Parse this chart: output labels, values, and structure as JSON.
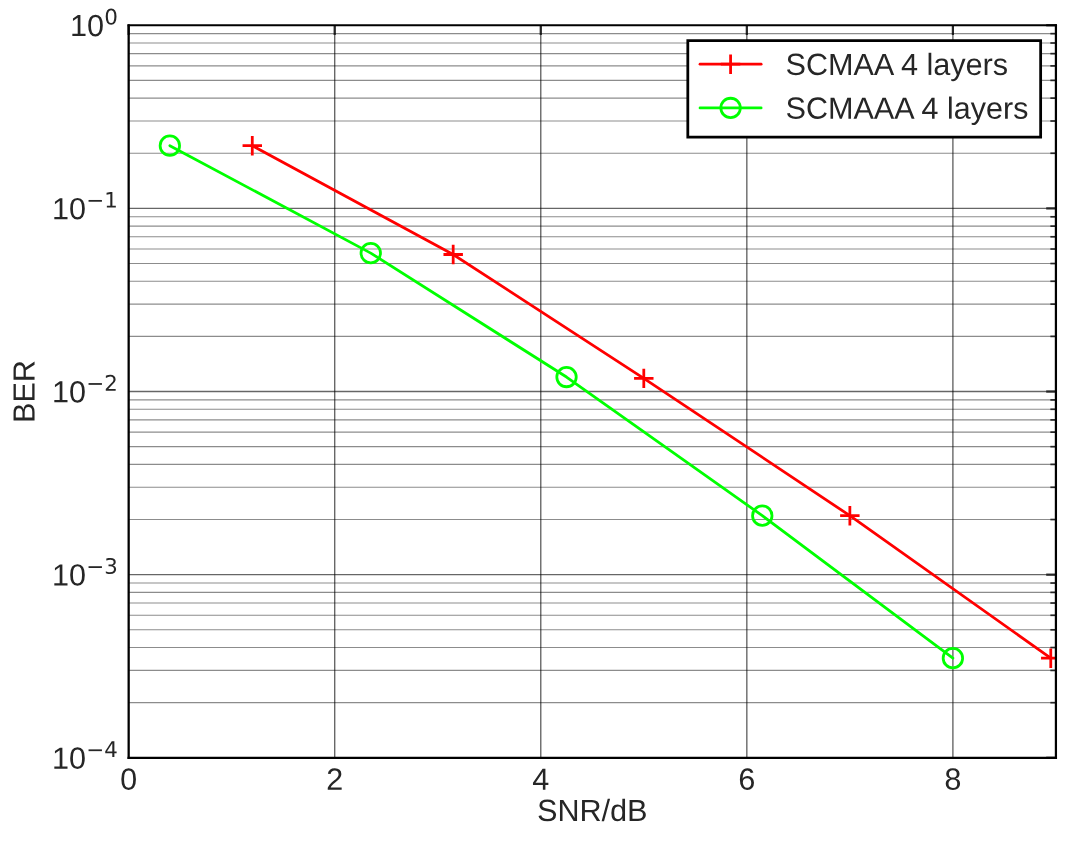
{
  "chart_data": {
    "type": "line",
    "xlabel": "SNR/dB",
    "ylabel": "BER",
    "log": "y",
    "xlim": [
      0,
      9
    ],
    "xticks": [
      0,
      2,
      4,
      6,
      8
    ],
    "ylim": [
      0.0001,
      1
    ],
    "yticks": [
      {
        "value": 0.0001,
        "label": "10$^{−4}$"
      },
      {
        "value": 0.001,
        "label": "10$^{−3}$"
      },
      {
        "value": 0.01,
        "label": "10$^{−2}$"
      },
      {
        "value": 0.1,
        "label": "10$^{−1}$"
      },
      {
        "value": 1,
        "label": "10$^{0}$"
      }
    ],
    "grid": true,
    "legend": "top right",
    "line_style": "solid",
    "series": [
      {
        "name": "SCMAA 4 layers",
        "color": "#ff0000",
        "marker": "cross",
        "x": [
          1.2,
          3.15,
          5.0,
          7.0,
          8.95
        ],
        "values": [
          0.22,
          0.056,
          0.0118,
          0.0021,
          0.00035
        ]
      },
      {
        "name": "SCMAAA 4 layers",
        "color": "#00ff00",
        "marker": "circle",
        "x": [
          0.4,
          2.35,
          4.25,
          6.15,
          8.0
        ],
        "values": [
          0.22,
          0.057,
          0.012,
          0.0021,
          0.00035
        ]
      }
    ]
  }
}
